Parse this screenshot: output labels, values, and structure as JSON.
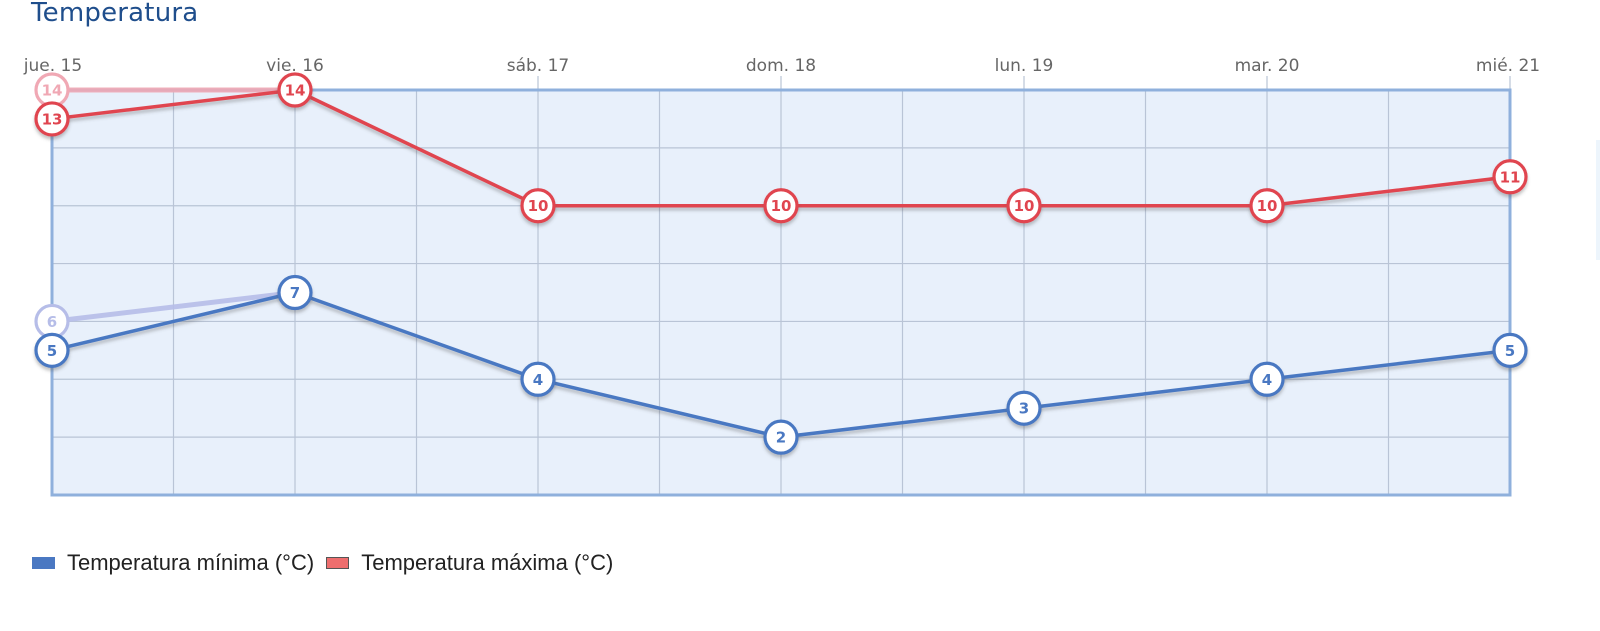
{
  "header": {
    "title": "Temperatura"
  },
  "colors": {
    "min": "#4a78c2",
    "max": "#e0454f",
    "min_ghost": "#b6bde8",
    "max_ghost": "#f0a8b4",
    "plot_bg": "#e8f0fb",
    "plot_border": "#8fb0dc",
    "grid": "#b9c4d6"
  },
  "legend": {
    "items": [
      {
        "label": "Temperatura mínima (°C)",
        "color": "#4a78c2"
      },
      {
        "label": "Temperatura máxima (°C)",
        "color": "#ee6e6e"
      }
    ]
  },
  "chart_data": {
    "type": "line",
    "title": "Temperatura",
    "categories": [
      "jue. 15",
      "vie. 16",
      "sáb. 17",
      "dom. 18",
      "lun. 19",
      "mar. 20",
      "mié. 21"
    ],
    "series": [
      {
        "name": "Temperatura mínima (°C)",
        "values": [
          5,
          7,
          4,
          2,
          3,
          4,
          5
        ],
        "color": "#4a78c2"
      },
      {
        "name": "Temperatura máxima (°C)",
        "values": [
          13,
          14,
          10,
          10,
          10,
          10,
          11
        ],
        "color": "#e0454f"
      }
    ],
    "previous_forecast": [
      {
        "series": "Temperatura mínima (°C)",
        "x": [
          "jue. 15",
          "vie. 16"
        ],
        "values": [
          6,
          7
        ]
      },
      {
        "series": "Temperatura máxima (°C)",
        "x": [
          "jue. 15",
          "vie. 16"
        ],
        "values": [
          14,
          14
        ]
      }
    ],
    "xlabel": "",
    "ylabel": "",
    "ylim": [
      0,
      14
    ],
    "y_grid_step": 2,
    "grid": true,
    "legend_position": "bottom-left",
    "x_axis_position": "top"
  }
}
